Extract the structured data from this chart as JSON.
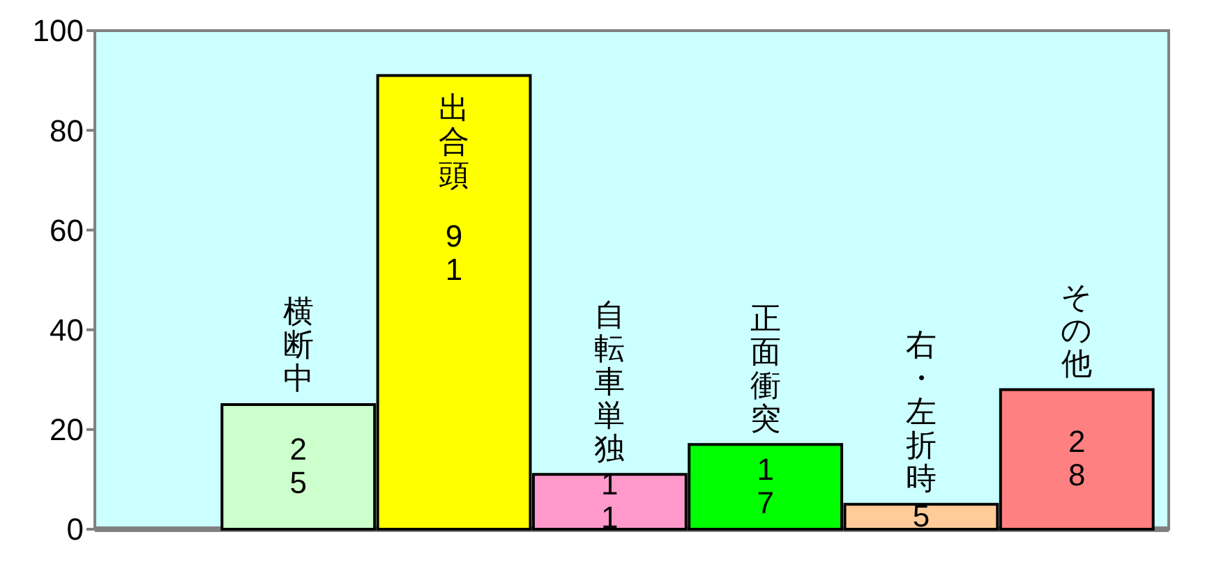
{
  "chart_data": {
    "type": "bar",
    "categories": [
      "横断中",
      "出合頭",
      "自転車単独",
      "正面衝突",
      "右・左折時",
      "その他"
    ],
    "values": [
      25,
      91,
      11,
      17,
      5,
      28
    ],
    "colors": [
      "#ccffcc",
      "#ffff00",
      "#ff99cc",
      "#00ff00",
      "#ffcc99",
      "#ff8080"
    ],
    "ylim": [
      0,
      100
    ],
    "yticks": [
      0,
      20,
      40,
      60,
      80,
      100
    ],
    "data_labels": true
  }
}
